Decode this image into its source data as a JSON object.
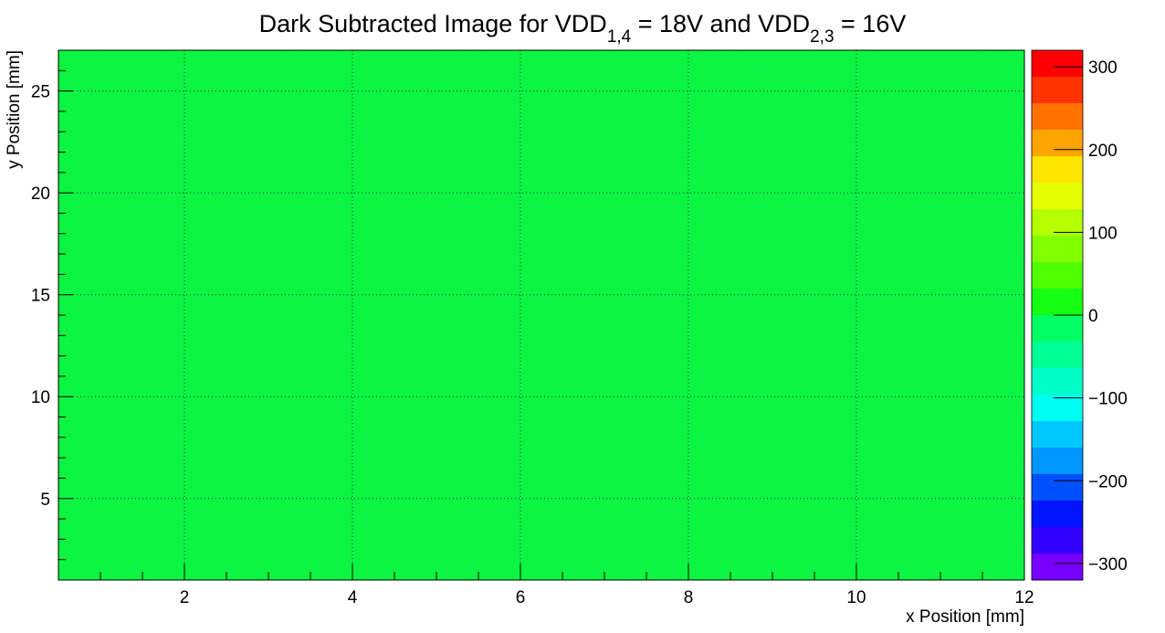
{
  "chart_data": {
    "type": "heatmap",
    "title": {
      "prefix": "Dark Subtracted Image for VDD",
      "sub1": "1,4",
      "mid": " = 18V and VDD",
      "sub2": "2,3",
      "suffix": " = 16V"
    },
    "xlabel": "x Position [mm]",
    "ylabel": "y Position [mm]",
    "xlim": [
      0.5,
      12
    ],
    "ylim": [
      1,
      27
    ],
    "x_ticks": [
      "2",
      "4",
      "6",
      "8",
      "10",
      "12"
    ],
    "x_tick_values": [
      2,
      4,
      6,
      8,
      10,
      12
    ],
    "y_ticks": [
      "5",
      "10",
      "15",
      "20",
      "25"
    ],
    "y_tick_values": [
      5,
      10,
      15,
      20,
      25
    ],
    "z_range": [
      -320,
      320
    ],
    "z_ticks": [
      "300",
      "200",
      "100",
      "0",
      "−100",
      "−200",
      "−300"
    ],
    "z_tick_values": [
      300,
      200,
      100,
      0,
      -100,
      -200,
      -300
    ],
    "palette": [
      "#ff0000",
      "#ff3300",
      "#ff7200",
      "#ffa500",
      "#ffe600",
      "#e6ff00",
      "#b4ff00",
      "#82ff00",
      "#50ff00",
      "#14ff14",
      "#00ff64",
      "#00ff96",
      "#00ffc8",
      "#00fff0",
      "#00c8ff",
      "#0096ff",
      "#0050ff",
      "#0014ff",
      "#3200ff",
      "#7800ff"
    ],
    "fill_color": "#0af540",
    "grid": true,
    "pixel_values": "approximately 0 everywhere (uniform noise around zero)"
  }
}
